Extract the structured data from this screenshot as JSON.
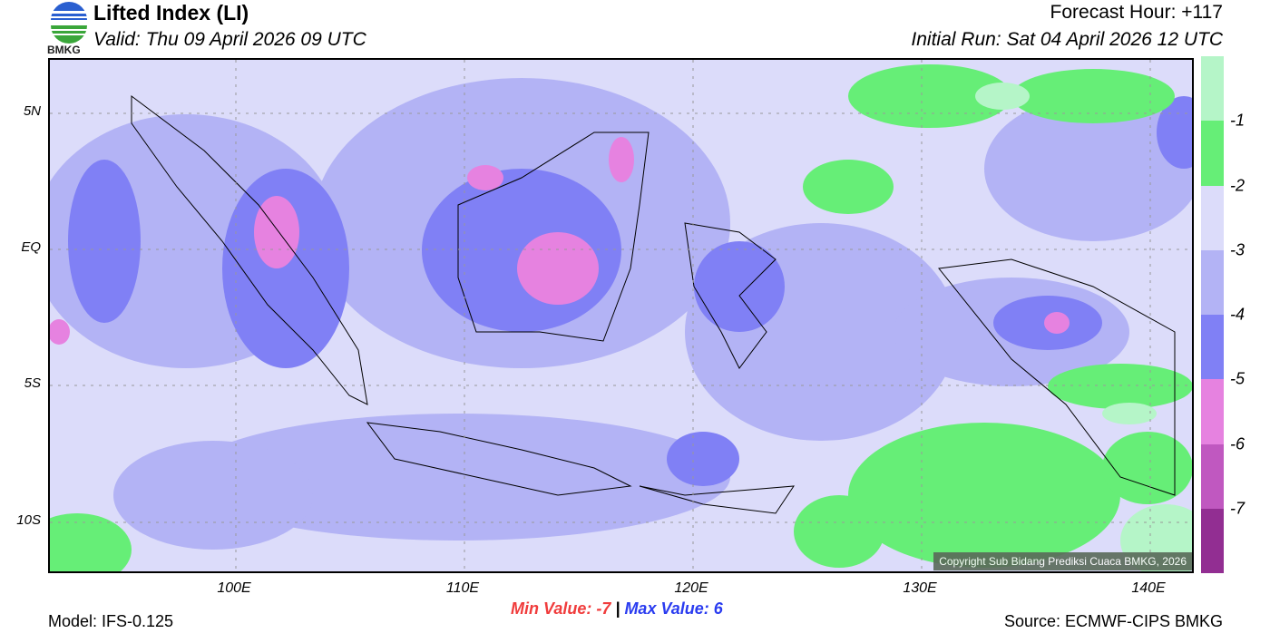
{
  "header": {
    "title": "Lifted Index (LI)",
    "valid": "Valid: Thu 09 April 2026 09 UTC",
    "forecast_hour": "Forecast Hour: +117",
    "initial_run": "Initial Run: Sat 04 April 2026 12 UTC",
    "logo_text": "BMKG"
  },
  "map": {
    "lat_labels": [
      "5N",
      "EQ",
      "5S",
      "10S"
    ],
    "lon_labels": [
      "100E",
      "110E",
      "120E",
      "130E",
      "140E"
    ],
    "lon_range": [
      92,
      142
    ],
    "lat_range": [
      -12,
      7
    ],
    "copyright": "Copyright Sub Bidang Prediksi Cuaca BMKG, 2026"
  },
  "colorbar": {
    "labels": [
      "-1",
      "-2",
      "-3",
      "-4",
      "-5",
      "-6",
      "-7"
    ],
    "colors": [
      "#b5f5c8",
      "#66ee77",
      "#dcdcfa",
      "#b3b3f5",
      "#8080f5",
      "#e682e0",
      "#c058c0",
      "#922e92"
    ]
  },
  "stats": {
    "min_label": "Min Value:  -7",
    "separator": "|",
    "max_label": "Max Value:   6"
  },
  "footer": {
    "model": "Model: IFS-0.125",
    "source": "Source: ECMWF-CIPS BMKG"
  }
}
